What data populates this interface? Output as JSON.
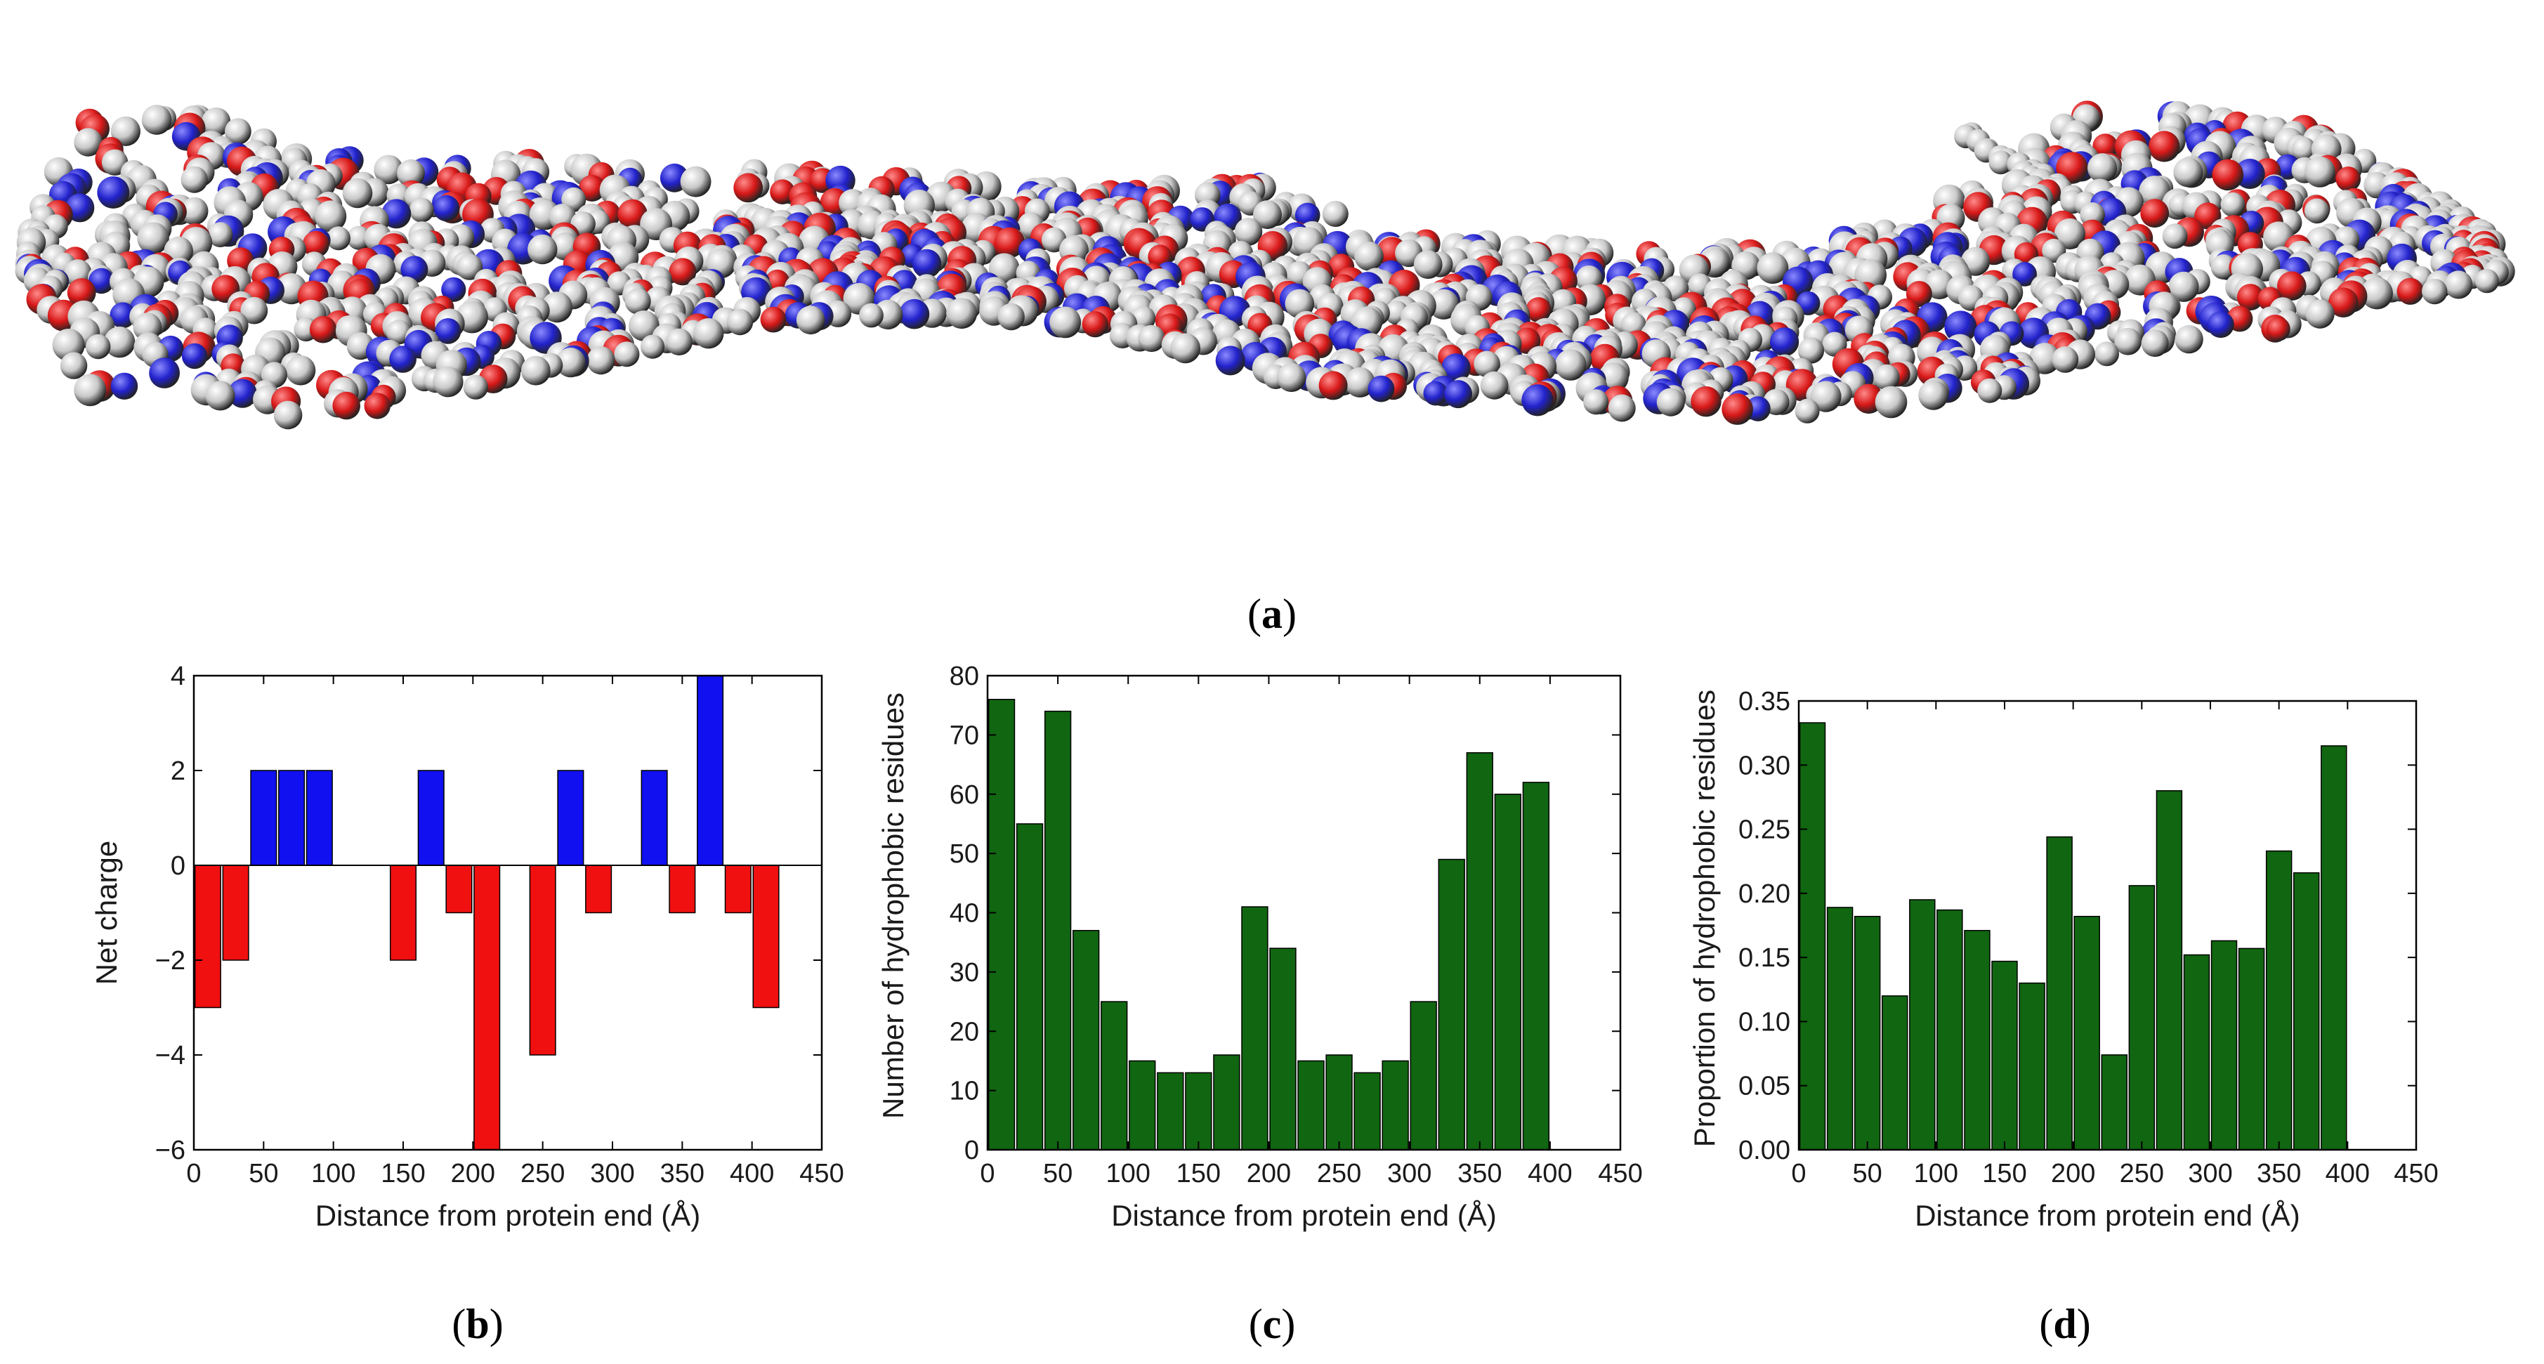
{
  "panels": {
    "a": {
      "label_open": "(",
      "letter": "a",
      "label_close": ")"
    },
    "b": {
      "label_open": "(",
      "letter": "b",
      "label_close": ")"
    },
    "c": {
      "label_open": "(",
      "letter": "c",
      "label_close": ")"
    },
    "d": {
      "label_open": "(",
      "letter": "d",
      "label_close": ")"
    }
  },
  "colors": {
    "positive": "#1010f0",
    "negative": "#f01010",
    "hydrophobic": "#116611",
    "atom_white": "#e6e6e6",
    "atom_red": "#d81818",
    "atom_blue": "#2222cc"
  },
  "chart_data": [
    {
      "id": "b",
      "type": "bar",
      "title": "",
      "xlabel": "Distance from protein end (Å)",
      "ylabel": "Net charge",
      "xlim": [
        0,
        450
      ],
      "ylim": [
        -6,
        4
      ],
      "xticks": [
        0,
        50,
        100,
        150,
        200,
        250,
        300,
        350,
        400,
        450
      ],
      "yticks": [
        -6,
        -4,
        -2,
        0,
        2,
        4
      ],
      "ytick_labels": [
        "−6",
        "−4",
        "−2",
        "0",
        "2",
        "4"
      ],
      "bin_width": 20,
      "x": [
        10,
        30,
        50,
        70,
        90,
        110,
        130,
        150,
        170,
        190,
        210,
        230,
        250,
        270,
        290,
        310,
        330,
        350,
        370,
        390,
        410,
        430,
        450
      ],
      "values": [
        -3,
        -2,
        2,
        2,
        2,
        0,
        0,
        -2,
        2,
        -1,
        -6,
        0,
        -4,
        2,
        -1,
        0,
        2,
        -1,
        4,
        -1,
        -3,
        0,
        0
      ],
      "note_values": "positive bars blue, negative bars red"
    },
    {
      "id": "c",
      "type": "bar",
      "title": "",
      "xlabel": "Distance from protein end (Å)",
      "ylabel": "Number of hydrophobic residues",
      "xlim": [
        0,
        450
      ],
      "ylim": [
        0,
        80
      ],
      "xticks": [
        0,
        50,
        100,
        150,
        200,
        250,
        300,
        350,
        400,
        450
      ],
      "yticks": [
        0,
        10,
        20,
        30,
        40,
        50,
        60,
        70,
        80
      ],
      "bin_width": 20,
      "x": [
        10,
        30,
        50,
        70,
        90,
        110,
        130,
        150,
        170,
        190,
        210,
        230,
        250,
        270,
        290,
        310,
        330,
        350,
        370,
        390,
        410,
        430
      ],
      "values": [
        76,
        55,
        74,
        37,
        25,
        15,
        13,
        13,
        16,
        41,
        34,
        15,
        16,
        13,
        15,
        25,
        49,
        67,
        60,
        62,
        0,
        0
      ]
    },
    {
      "id": "d",
      "type": "bar",
      "title": "",
      "xlabel": "Distance from protein end (Å)",
      "ylabel": "Proportion of hydrophobic residues",
      "xlim": [
        0,
        450
      ],
      "ylim": [
        0,
        0.35
      ],
      "xticks": [
        0,
        50,
        100,
        150,
        200,
        250,
        300,
        350,
        400,
        450
      ],
      "yticks": [
        0,
        0.05,
        0.1,
        0.15,
        0.2,
        0.25,
        0.3,
        0.35
      ],
      "ytick_labels": [
        "0.00",
        "0.05",
        "0.10",
        "0.15",
        "0.20",
        "0.25",
        "0.30",
        "0.35"
      ],
      "bin_width": 20,
      "x": [
        10,
        30,
        50,
        70,
        90,
        110,
        130,
        150,
        170,
        190,
        210,
        230,
        250,
        270,
        290,
        310,
        330,
        350,
        370,
        390,
        410,
        430
      ],
      "values": [
        0.333,
        0.189,
        0.182,
        0.12,
        0.195,
        0.187,
        0.171,
        0.147,
        0.13,
        0.244,
        0.182,
        0.074,
        0.206,
        0.28,
        0.152,
        0.163,
        0.157,
        0.233,
        0.216,
        0.315,
        0,
        0
      ]
    }
  ]
}
